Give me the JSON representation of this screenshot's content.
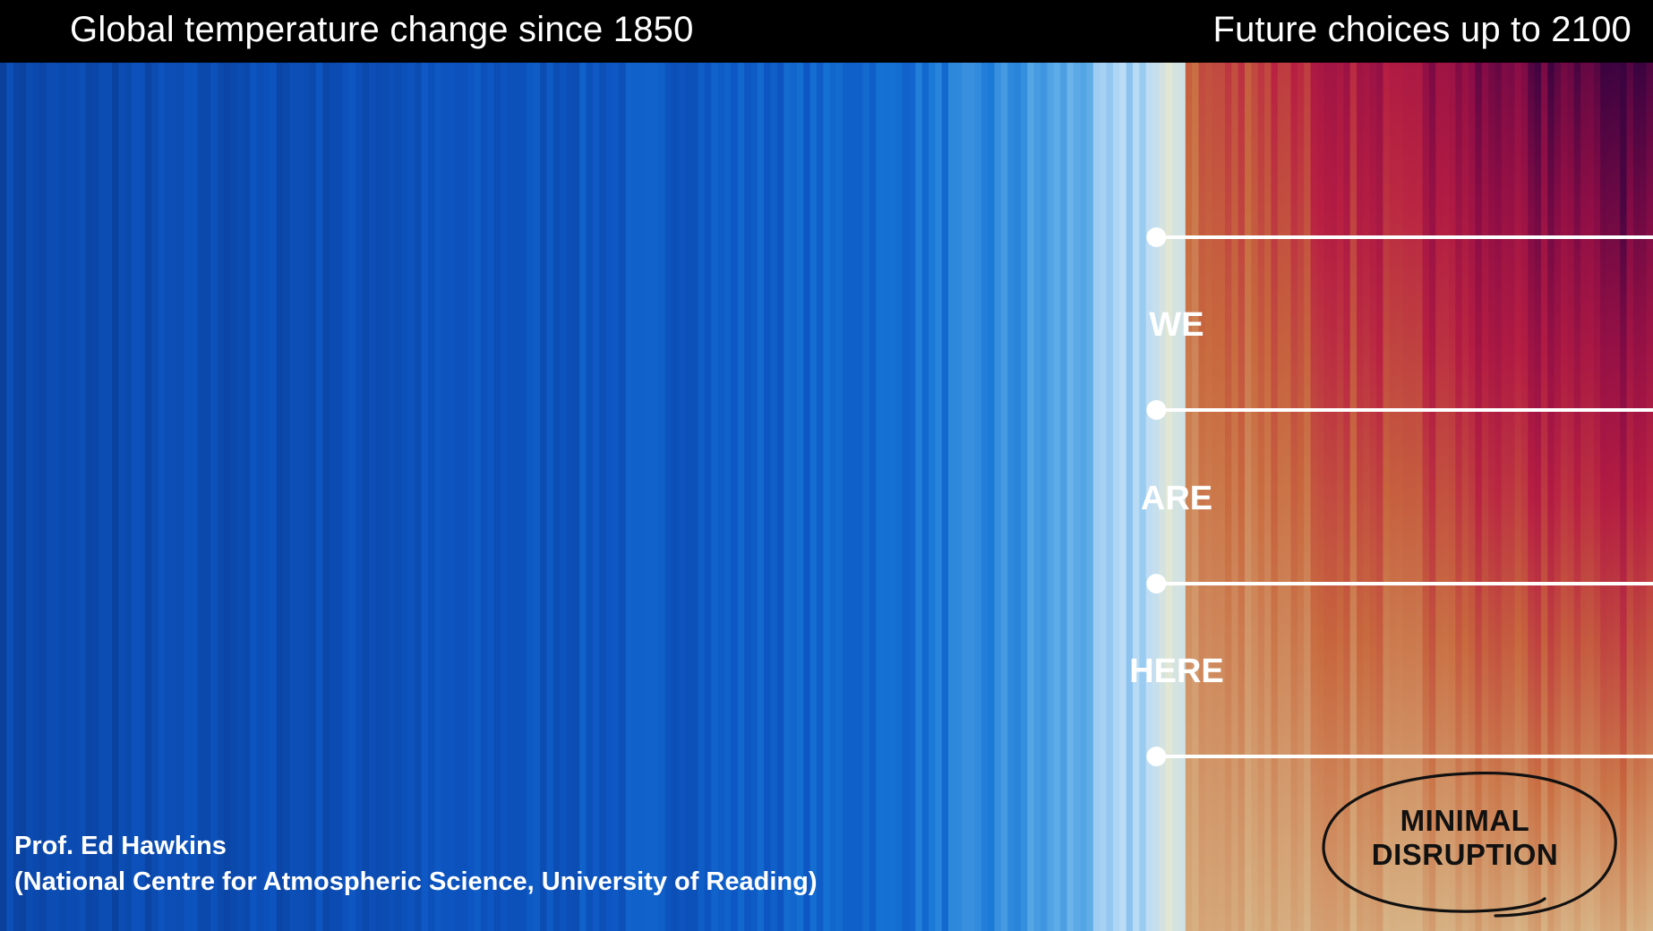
{
  "header": {
    "left_title": "Global temperature change since 1850",
    "right_title": "Future choices up to 2100"
  },
  "markers": {
    "words": [
      "WE",
      "ARE",
      "HERE"
    ],
    "line_color": "#ffffff"
  },
  "credit": {
    "line1": "Prof. Ed Hawkins",
    "line2": "(National Centre for Atmospheric Science, University of Reading)"
  },
  "stamp": {
    "line1": "MINIMAL",
    "line2": "DISRUPTION",
    "stroke_color": "#111111"
  },
  "chart_data": {
    "type": "heatmap",
    "title": "Global temperature change since 1850",
    "subtitle": "Future choices up to 2100",
    "x_range": [
      1850,
      2100
    ],
    "present_year": 2024,
    "encoding": "vertical stripes, one per year, coloured by temperature anomaly (blue = cooler, red = warmer)",
    "colors": {
      "past_anchor_colors": [
        "#0a3f9a",
        "#0d55c2",
        "#1675d6",
        "#5aaae6",
        "#bcdcf6",
        "#eeebc8"
      ],
      "future_anchor_colors": [
        "#d8b789",
        "#c86a3e",
        "#b81e42",
        "#8a0c46",
        "#3a0340"
      ]
    }
  }
}
